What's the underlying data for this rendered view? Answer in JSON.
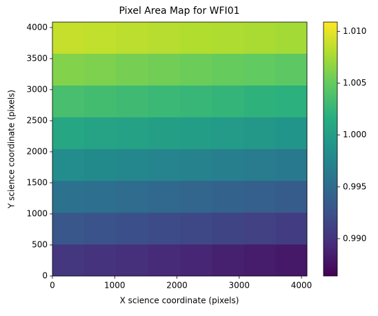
{
  "chart_data": {
    "type": "heatmap",
    "title": "Pixel Area Map for WFI01",
    "x_label": "X science coordinate (pixels)",
    "y_label": "Y science coordinate (pixels)",
    "x": [
      256,
      768,
      1280,
      1792,
      2304,
      2816,
      3328,
      3840
    ],
    "y": [
      256,
      768,
      1280,
      1792,
      2304,
      2816,
      3328,
      3840
    ],
    "z": [
      [
        0.9903,
        0.99,
        0.9897,
        0.9893,
        0.989,
        0.9886,
        0.9883,
        0.988
      ],
      [
        0.993,
        0.9927,
        0.9924,
        0.992,
        0.9917,
        0.9914,
        0.9911,
        0.9908
      ],
      [
        0.9956,
        0.9953,
        0.995,
        0.9947,
        0.9944,
        0.9941,
        0.9938,
        0.9935
      ],
      [
        0.9983,
        0.998,
        0.9977,
        0.9974,
        0.9972,
        0.9969,
        0.9966,
        0.9963
      ],
      [
        1.0009,
        1.0006,
        1.0004,
        1.0001,
        0.9999,
        0.9997,
        0.9994,
        0.9991
      ],
      [
        1.0035,
        1.0033,
        1.0031,
        1.0028,
        1.0026,
        1.0024,
        1.0021,
        1.0019
      ],
      [
        1.0062,
        1.006,
        1.0057,
        1.0055,
        1.0053,
        1.0051,
        1.0049,
        1.0047
      ],
      [
        1.0088,
        1.0086,
        1.0084,
        1.0082,
        1.008,
        1.0079,
        1.0077,
        1.0075
      ]
    ],
    "xlim": [
      0,
      4088
    ],
    "ylim": [
      0,
      4088
    ],
    "xticks": [
      0,
      1000,
      2000,
      3000,
      4000
    ],
    "yticks": [
      0,
      500,
      1000,
      1500,
      2000,
      2500,
      3000,
      3500,
      4000
    ],
    "colormap": "viridis",
    "clim": [
      0.9864,
      1.0109
    ],
    "colorbar_ticks": [
      {
        "value": 0.99,
        "label": "0.990"
      },
      0.995,
      {
        "value": 1.0,
        "label": "1.000"
      },
      1.005,
      {
        "value": 1.01,
        "label": "1.010"
      }
    ]
  }
}
